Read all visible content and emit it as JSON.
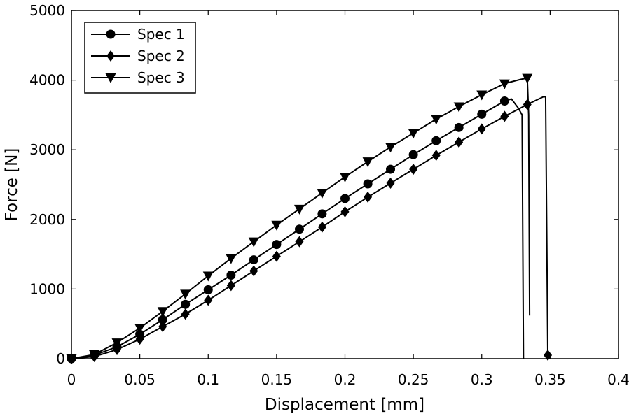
{
  "chart_data": {
    "type": "line",
    "xlabel": "Displacement  [mm]",
    "ylabel": "Force  [N]",
    "xlim": [
      0,
      0.4
    ],
    "ylim": [
      0,
      5000
    ],
    "x_ticks": [
      "0",
      "0.05",
      "0.1",
      "0.15",
      "0.2",
      "0.25",
      "0.3",
      "0.35",
      "0.4"
    ],
    "y_ticks": [
      "0",
      "1000",
      "2000",
      "3000",
      "4000",
      "5000"
    ],
    "grid": false,
    "legend_position": "top-left",
    "series": [
      {
        "name": "Spec  1",
        "marker": "circle",
        "x": [
          0,
          0.0167,
          0.0333,
          0.05,
          0.0667,
          0.0833,
          0.1,
          0.1167,
          0.1333,
          0.15,
          0.1667,
          0.1833,
          0.2,
          0.2167,
          0.2333,
          0.25,
          0.2667,
          0.2833,
          0.3,
          0.3167,
          0.3217,
          0.3267,
          0.3295,
          0.3305
        ],
        "y": [
          0,
          50,
          170,
          350,
          560,
          780,
          990,
          1200,
          1420,
          1640,
          1860,
          2080,
          2300,
          2510,
          2720,
          2930,
          3130,
          3320,
          3510,
          3700,
          3730,
          3600,
          3500,
          0
        ]
      },
      {
        "name": "Spec  2",
        "marker": "diamond",
        "x": [
          0,
          0.0167,
          0.0333,
          0.05,
          0.0667,
          0.0833,
          0.1,
          0.1167,
          0.1333,
          0.15,
          0.1667,
          0.1833,
          0.2,
          0.2167,
          0.2333,
          0.25,
          0.2667,
          0.2833,
          0.3,
          0.3167,
          0.3333,
          0.345,
          0.3467,
          0.3483,
          0.3483
        ],
        "y": [
          0,
          30,
          130,
          280,
          460,
          640,
          840,
          1050,
          1260,
          1470,
          1680,
          1890,
          2110,
          2320,
          2520,
          2720,
          2920,
          3110,
          3300,
          3480,
          3650,
          3760,
          3760,
          0,
          50
        ]
      },
      {
        "name": "Spec  3",
        "marker": "triangle-down",
        "x": [
          0,
          0.0167,
          0.0333,
          0.05,
          0.0667,
          0.0833,
          0.1,
          0.1167,
          0.1333,
          0.15,
          0.1667,
          0.1833,
          0.2,
          0.2167,
          0.2333,
          0.25,
          0.2667,
          0.2833,
          0.3,
          0.3167,
          0.3283,
          0.3333,
          0.3343,
          0.335
        ],
        "y": [
          0,
          60,
          230,
          440,
          680,
          930,
          1190,
          1440,
          1680,
          1920,
          2150,
          2380,
          2610,
          2830,
          3040,
          3240,
          3440,
          3620,
          3790,
          3950,
          4010,
          4030,
          3500,
          620
        ]
      }
    ]
  }
}
